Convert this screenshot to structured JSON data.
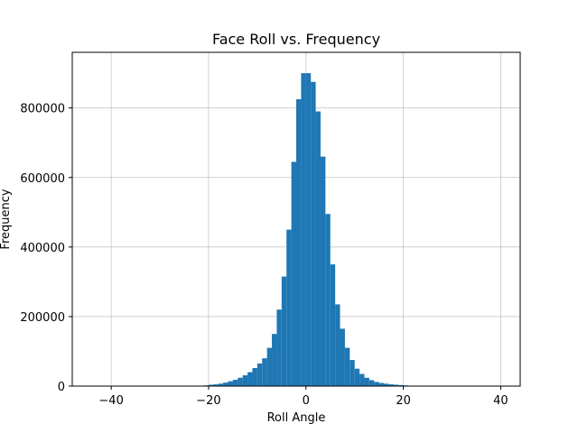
{
  "chart_data": {
    "type": "bar",
    "title": "Face Roll vs. Frequency",
    "xlabel": "Roll Angle",
    "ylabel": "Frequency",
    "xlim": [
      -48,
      44
    ],
    "ylim": [
      0,
      960000
    ],
    "grid": true,
    "bar_color": "#1f77b4",
    "bin_width": 1,
    "x_ticks": [
      -40,
      -20,
      0,
      20,
      40
    ],
    "x_tick_labels": [
      "−40",
      "−20",
      "0",
      "20",
      "40"
    ],
    "y_ticks": [
      0,
      200000,
      400000,
      600000,
      800000
    ],
    "y_tick_labels": [
      "0",
      "200000",
      "400000",
      "600000",
      "800000"
    ],
    "bins": [
      {
        "x": -21,
        "value": 2000
      },
      {
        "x": -20,
        "value": 4000
      },
      {
        "x": -19,
        "value": 5000
      },
      {
        "x": -18,
        "value": 7000
      },
      {
        "x": -17,
        "value": 10000
      },
      {
        "x": -16,
        "value": 14000
      },
      {
        "x": -15,
        "value": 18000
      },
      {
        "x": -14,
        "value": 24000
      },
      {
        "x": -13,
        "value": 31000
      },
      {
        "x": -12,
        "value": 40000
      },
      {
        "x": -11,
        "value": 52000
      },
      {
        "x": -10,
        "value": 65000
      },
      {
        "x": -9,
        "value": 80000
      },
      {
        "x": -8,
        "value": 110000
      },
      {
        "x": -7,
        "value": 150000
      },
      {
        "x": -6,
        "value": 220000
      },
      {
        "x": -5,
        "value": 315000
      },
      {
        "x": -4,
        "value": 450000
      },
      {
        "x": -3,
        "value": 645000
      },
      {
        "x": -2,
        "value": 825000
      },
      {
        "x": -1,
        "value": 900000
      },
      {
        "x": 0,
        "value": 900000
      },
      {
        "x": 1,
        "value": 875000
      },
      {
        "x": 2,
        "value": 790000
      },
      {
        "x": 3,
        "value": 660000
      },
      {
        "x": 4,
        "value": 495000
      },
      {
        "x": 5,
        "value": 350000
      },
      {
        "x": 6,
        "value": 235000
      },
      {
        "x": 7,
        "value": 165000
      },
      {
        "x": 8,
        "value": 110000
      },
      {
        "x": 9,
        "value": 75000
      },
      {
        "x": 10,
        "value": 50000
      },
      {
        "x": 11,
        "value": 35000
      },
      {
        "x": 12,
        "value": 24000
      },
      {
        "x": 13,
        "value": 17000
      },
      {
        "x": 14,
        "value": 12000
      },
      {
        "x": 15,
        "value": 9000
      },
      {
        "x": 16,
        "value": 7000
      },
      {
        "x": 17,
        "value": 5000
      },
      {
        "x": 18,
        "value": 4000
      },
      {
        "x": 19,
        "value": 3000
      },
      {
        "x": 20,
        "value": 2000
      },
      {
        "x": 21,
        "value": 1000
      }
    ]
  }
}
